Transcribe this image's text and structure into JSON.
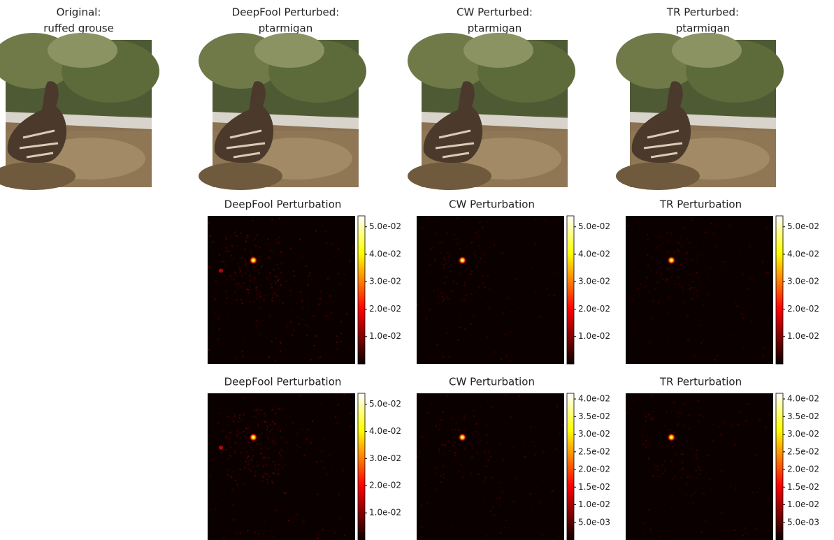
{
  "chart_data": [
    {
      "type": "image",
      "title": "Original:",
      "label": "ruffed grouse"
    },
    {
      "type": "image",
      "title": "DeepFool Perturbed:",
      "label": "ptarmigan"
    },
    {
      "type": "image",
      "title": "CW Perturbed:",
      "label": "ptarmigan"
    },
    {
      "type": "image",
      "title": "TR Perturbed:",
      "label": "ptarmigan"
    },
    {
      "type": "heatmap",
      "title": "DeepFool Perturbation",
      "clim": [
        0,
        0.054
      ],
      "cticks": [
        {
          "value": 0.01,
          "label": "1.0e-02"
        },
        {
          "value": 0.02,
          "label": "2.0e-02"
        },
        {
          "value": 0.03,
          "label": "3.0e-02"
        },
        {
          "value": 0.04,
          "label": "4.0e-02"
        },
        {
          "value": 0.05,
          "label": "5.0e-02"
        }
      ]
    },
    {
      "type": "heatmap",
      "title": "CW Perturbation",
      "clim": [
        0,
        0.054
      ],
      "cticks": [
        {
          "value": 0.01,
          "label": "1.0e-02"
        },
        {
          "value": 0.02,
          "label": "2.0e-02"
        },
        {
          "value": 0.03,
          "label": "3.0e-02"
        },
        {
          "value": 0.04,
          "label": "4.0e-02"
        },
        {
          "value": 0.05,
          "label": "5.0e-02"
        }
      ]
    },
    {
      "type": "heatmap",
      "title": "TR Perturbation",
      "clim": [
        0,
        0.054
      ],
      "cticks": [
        {
          "value": 0.01,
          "label": "1.0e-02"
        },
        {
          "value": 0.02,
          "label": "2.0e-02"
        },
        {
          "value": 0.03,
          "label": "3.0e-02"
        },
        {
          "value": 0.04,
          "label": "4.0e-02"
        },
        {
          "value": 0.05,
          "label": "5.0e-02"
        }
      ]
    },
    {
      "type": "heatmap",
      "title": "DeepFool Perturbation",
      "clim": [
        0,
        0.054
      ],
      "cticks": [
        {
          "value": 0.01,
          "label": "1.0e-02"
        },
        {
          "value": 0.02,
          "label": "2.0e-02"
        },
        {
          "value": 0.03,
          "label": "3.0e-02"
        },
        {
          "value": 0.04,
          "label": "4.0e-02"
        },
        {
          "value": 0.05,
          "label": "5.0e-02"
        }
      ]
    },
    {
      "type": "heatmap",
      "title": "CW Perturbation",
      "clim": [
        0,
        0.0416
      ],
      "cticks": [
        {
          "value": 0.005,
          "label": "5.0e-03"
        },
        {
          "value": 0.01,
          "label": "1.0e-02"
        },
        {
          "value": 0.015,
          "label": "1.5e-02"
        },
        {
          "value": 0.02,
          "label": "2.0e-02"
        },
        {
          "value": 0.025,
          "label": "2.5e-02"
        },
        {
          "value": 0.03,
          "label": "3.0e-02"
        },
        {
          "value": 0.035,
          "label": "3.5e-02"
        },
        {
          "value": 0.04,
          "label": "4.0e-02"
        }
      ]
    },
    {
      "type": "heatmap",
      "title": "TR Perturbation",
      "clim": [
        0,
        0.0416
      ],
      "cticks": [
        {
          "value": 0.005,
          "label": "5.0e-03"
        },
        {
          "value": 0.01,
          "label": "1.0e-02"
        },
        {
          "value": 0.015,
          "label": "1.5e-02"
        },
        {
          "value": 0.02,
          "label": "2.0e-02"
        },
        {
          "value": 0.025,
          "label": "2.5e-02"
        },
        {
          "value": 0.03,
          "label": "3.0e-02"
        },
        {
          "value": 0.035,
          "label": "3.5e-02"
        },
        {
          "value": 0.04,
          "label": "4.0e-02"
        }
      ]
    }
  ]
}
